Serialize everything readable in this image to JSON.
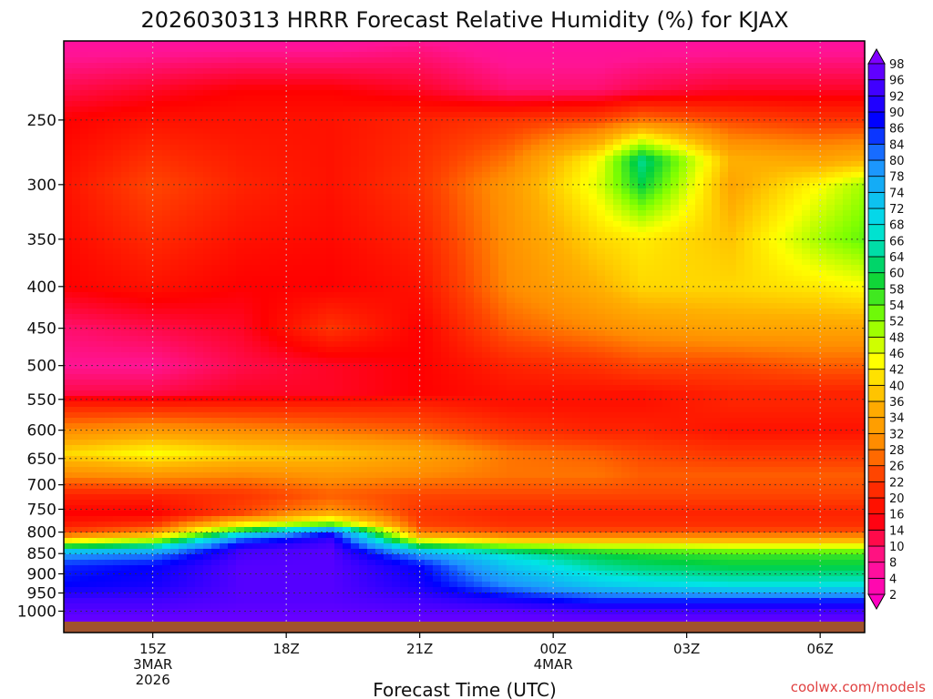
{
  "chart_data": {
    "type": "heatmap",
    "title": "2026030313 HRRR Forecast Relative Humidity (%) for KJAX",
    "xlabel": "Forecast Time (UTC)",
    "ylabel": "",
    "watermark": "coolwx.com/models",
    "y_scale": "log-pressure",
    "y_range": [
      1030,
      200
    ],
    "y_ticks": [
      250,
      300,
      350,
      400,
      450,
      500,
      550,
      600,
      650,
      700,
      750,
      800,
      850,
      900,
      950,
      1000
    ],
    "x_ticks": [
      {
        "hour": 15,
        "lines": [
          "15Z",
          "3MAR",
          "2026"
        ]
      },
      {
        "hour": 18,
        "lines": [
          "18Z"
        ]
      },
      {
        "hour": 21,
        "lines": [
          "21Z"
        ]
      },
      {
        "hour": 24,
        "lines": [
          "00Z",
          "4MAR"
        ]
      },
      {
        "hour": 27,
        "lines": [
          "03Z"
        ]
      },
      {
        "hour": 30,
        "lines": [
          "06Z"
        ]
      }
    ],
    "x_range_hours": [
      13,
      31
    ],
    "grid": true,
    "colorbar": {
      "placement": "right",
      "levels": [
        2,
        4,
        8,
        10,
        14,
        16,
        20,
        22,
        26,
        28,
        32,
        34,
        36,
        40,
        42,
        46,
        48,
        52,
        54,
        58,
        60,
        64,
        66,
        68,
        72,
        74,
        78,
        80,
        84,
        86,
        90,
        92,
        96,
        98
      ],
      "colors": {
        "magenta": "#ff00c0",
        "pink": "#ff1493",
        "red": "#ff0000",
        "orange_red": "#ff4500",
        "orange": "#ff8c00",
        "gold": "#ffb000",
        "yellow": "#ffff00",
        "lime": "#7fff00",
        "green": "#00d040",
        "cyan": "#00e5e5",
        "blue": "#0000ff",
        "purple": "#8000ff",
        "ground": "#a0522d"
      }
    },
    "profiles": [
      {
        "hour": 13,
        "levels": [
          [
            200,
            6
          ],
          [
            230,
            12
          ],
          [
            250,
            16
          ],
          [
            300,
            18
          ],
          [
            400,
            16
          ],
          [
            450,
            10
          ],
          [
            500,
            8
          ],
          [
            540,
            12
          ],
          [
            560,
            20
          ],
          [
            600,
            30
          ],
          [
            640,
            40
          ],
          [
            680,
            30
          ],
          [
            720,
            20
          ],
          [
            760,
            16
          ],
          [
            790,
            20
          ],
          [
            810,
            30
          ],
          [
            830,
            55
          ],
          [
            850,
            78
          ],
          [
            880,
            86
          ],
          [
            930,
            88
          ],
          [
            970,
            94
          ],
          [
            1000,
            96
          ],
          [
            1030,
            98
          ]
        ]
      },
      {
        "hour": 15,
        "levels": [
          [
            200,
            6
          ],
          [
            230,
            14
          ],
          [
            250,
            18
          ],
          [
            300,
            24
          ],
          [
            400,
            18
          ],
          [
            450,
            12
          ],
          [
            500,
            8
          ],
          [
            540,
            12
          ],
          [
            560,
            20
          ],
          [
            600,
            32
          ],
          [
            640,
            44
          ],
          [
            680,
            32
          ],
          [
            720,
            20
          ],
          [
            760,
            16
          ],
          [
            790,
            24
          ],
          [
            810,
            40
          ],
          [
            830,
            62
          ],
          [
            850,
            80
          ],
          [
            880,
            88
          ],
          [
            930,
            90
          ],
          [
            970,
            94
          ],
          [
            1000,
            96
          ],
          [
            1030,
            98
          ]
        ]
      },
      {
        "hour": 17,
        "levels": [
          [
            200,
            6
          ],
          [
            230,
            16
          ],
          [
            250,
            18
          ],
          [
            300,
            20
          ],
          [
            400,
            16
          ],
          [
            450,
            14
          ],
          [
            500,
            12
          ],
          [
            540,
            14
          ],
          [
            560,
            20
          ],
          [
            600,
            30
          ],
          [
            640,
            40
          ],
          [
            680,
            30
          ],
          [
            720,
            22
          ],
          [
            760,
            24
          ],
          [
            780,
            40
          ],
          [
            800,
            62
          ],
          [
            815,
            82
          ],
          [
            840,
            94
          ],
          [
            880,
            96
          ],
          [
            930,
            96
          ],
          [
            970,
            96
          ],
          [
            1000,
            97
          ],
          [
            1030,
            98
          ]
        ]
      },
      {
        "hour": 19,
        "levels": [
          [
            200,
            6
          ],
          [
            230,
            16
          ],
          [
            250,
            18
          ],
          [
            300,
            18
          ],
          [
            400,
            16
          ],
          [
            450,
            22
          ],
          [
            500,
            14
          ],
          [
            540,
            14
          ],
          [
            560,
            20
          ],
          [
            600,
            28
          ],
          [
            640,
            38
          ],
          [
            680,
            32
          ],
          [
            720,
            26
          ],
          [
            750,
            30
          ],
          [
            780,
            50
          ],
          [
            795,
            78
          ],
          [
            810,
            92
          ],
          [
            840,
            96
          ],
          [
            880,
            96
          ],
          [
            930,
            96
          ],
          [
            970,
            96
          ],
          [
            1000,
            97
          ],
          [
            1030,
            98
          ]
        ]
      },
      {
        "hour": 21,
        "levels": [
          [
            200,
            8
          ],
          [
            230,
            14
          ],
          [
            250,
            20
          ],
          [
            300,
            22
          ],
          [
            400,
            18
          ],
          [
            450,
            16
          ],
          [
            500,
            16
          ],
          [
            540,
            16
          ],
          [
            560,
            20
          ],
          [
            600,
            26
          ],
          [
            640,
            34
          ],
          [
            680,
            30
          ],
          [
            720,
            24
          ],
          [
            760,
            22
          ],
          [
            790,
            24
          ],
          [
            810,
            36
          ],
          [
            830,
            58
          ],
          [
            850,
            78
          ],
          [
            880,
            88
          ],
          [
            930,
            90
          ],
          [
            970,
            94
          ],
          [
            1000,
            96
          ],
          [
            1030,
            98
          ]
        ]
      },
      {
        "hour": 23,
        "levels": [
          [
            200,
            6
          ],
          [
            230,
            10
          ],
          [
            250,
            22
          ],
          [
            300,
            32
          ],
          [
            400,
            30
          ],
          [
            450,
            26
          ],
          [
            500,
            20
          ],
          [
            540,
            18
          ],
          [
            560,
            18
          ],
          [
            600,
            22
          ],
          [
            640,
            28
          ],
          [
            680,
            28
          ],
          [
            720,
            24
          ],
          [
            760,
            20
          ],
          [
            790,
            22
          ],
          [
            810,
            30
          ],
          [
            830,
            50
          ],
          [
            850,
            66
          ],
          [
            880,
            72
          ],
          [
            930,
            80
          ],
          [
            970,
            90
          ],
          [
            1000,
            96
          ],
          [
            1030,
            98
          ]
        ]
      },
      {
        "hour": 25,
        "levels": [
          [
            200,
            6
          ],
          [
            230,
            10
          ],
          [
            250,
            24
          ],
          [
            280,
            44
          ],
          [
            300,
            46
          ],
          [
            350,
            40
          ],
          [
            400,
            36
          ],
          [
            450,
            30
          ],
          [
            500,
            22
          ],
          [
            540,
            18
          ],
          [
            560,
            18
          ],
          [
            600,
            20
          ],
          [
            640,
            26
          ],
          [
            680,
            28
          ],
          [
            720,
            24
          ],
          [
            760,
            20
          ],
          [
            790,
            22
          ],
          [
            810,
            30
          ],
          [
            830,
            46
          ],
          [
            850,
            60
          ],
          [
            880,
            64
          ],
          [
            930,
            72
          ],
          [
            970,
            86
          ],
          [
            1000,
            94
          ],
          [
            1030,
            98
          ]
        ]
      },
      {
        "hour": 26,
        "levels": [
          [
            200,
            6
          ],
          [
            230,
            12
          ],
          [
            250,
            28
          ],
          [
            280,
            64
          ],
          [
            300,
            60
          ],
          [
            350,
            42
          ],
          [
            400,
            40
          ],
          [
            450,
            32
          ],
          [
            500,
            24
          ],
          [
            540,
            18
          ],
          [
            560,
            18
          ],
          [
            600,
            20
          ],
          [
            640,
            24
          ],
          [
            680,
            26
          ],
          [
            720,
            24
          ],
          [
            760,
            20
          ],
          [
            790,
            22
          ],
          [
            810,
            30
          ],
          [
            830,
            46
          ],
          [
            850,
            58
          ],
          [
            880,
            62
          ],
          [
            930,
            70
          ],
          [
            970,
            86
          ],
          [
            1000,
            94
          ],
          [
            1030,
            98
          ]
        ]
      },
      {
        "hour": 28,
        "levels": [
          [
            200,
            6
          ],
          [
            230,
            14
          ],
          [
            250,
            24
          ],
          [
            280,
            36
          ],
          [
            300,
            34
          ],
          [
            350,
            38
          ],
          [
            400,
            40
          ],
          [
            450,
            34
          ],
          [
            500,
            24
          ],
          [
            540,
            20
          ],
          [
            560,
            20
          ],
          [
            600,
            18
          ],
          [
            640,
            22
          ],
          [
            680,
            26
          ],
          [
            720,
            24
          ],
          [
            760,
            20
          ],
          [
            790,
            22
          ],
          [
            810,
            30
          ],
          [
            830,
            44
          ],
          [
            850,
            56
          ],
          [
            880,
            60
          ],
          [
            930,
            68
          ],
          [
            970,
            86
          ],
          [
            1000,
            94
          ],
          [
            1030,
            98
          ]
        ]
      },
      {
        "hour": 30,
        "levels": [
          [
            200,
            6
          ],
          [
            230,
            14
          ],
          [
            250,
            22
          ],
          [
            280,
            34
          ],
          [
            300,
            44
          ],
          [
            350,
            50
          ],
          [
            400,
            42
          ],
          [
            450,
            34
          ],
          [
            500,
            26
          ],
          [
            540,
            20
          ],
          [
            560,
            20
          ],
          [
            600,
            18
          ],
          [
            640,
            22
          ],
          [
            680,
            26
          ],
          [
            720,
            24
          ],
          [
            760,
            20
          ],
          [
            790,
            22
          ],
          [
            810,
            30
          ],
          [
            830,
            44
          ],
          [
            850,
            56
          ],
          [
            880,
            60
          ],
          [
            930,
            68
          ],
          [
            970,
            86
          ],
          [
            1000,
            94
          ],
          [
            1030,
            98
          ]
        ]
      },
      {
        "hour": 31,
        "levels": [
          [
            200,
            6
          ],
          [
            230,
            14
          ],
          [
            250,
            22
          ],
          [
            280,
            36
          ],
          [
            300,
            50
          ],
          [
            350,
            54
          ],
          [
            400,
            44
          ],
          [
            450,
            34
          ],
          [
            500,
            26
          ],
          [
            540,
            20
          ],
          [
            560,
            20
          ],
          [
            600,
            18
          ],
          [
            640,
            22
          ],
          [
            680,
            26
          ],
          [
            720,
            24
          ],
          [
            760,
            20
          ],
          [
            790,
            22
          ],
          [
            810,
            30
          ],
          [
            830,
            44
          ],
          [
            850,
            56
          ],
          [
            880,
            60
          ],
          [
            930,
            68
          ],
          [
            970,
            86
          ],
          [
            1000,
            94
          ],
          [
            1030,
            98
          ]
        ]
      }
    ]
  }
}
